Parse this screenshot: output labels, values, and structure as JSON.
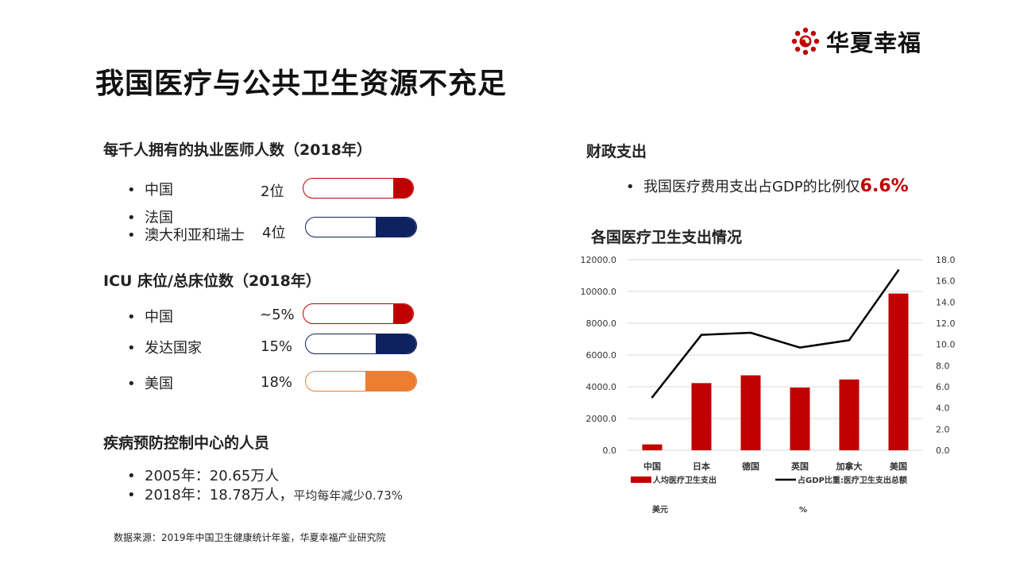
{
  "title": "我国医疗与公共卫生资源不充足",
  "logo": {
    "text": "华夏幸福",
    "icon": "flower-logo-icon",
    "color": "#c00000"
  },
  "colors": {
    "red": "#c00000",
    "navy": "#0e2260",
    "orange": "#ed7d31"
  },
  "doctors": {
    "heading": "每千人拥有的执业医师人数（2018年）",
    "rows": [
      {
        "labels": [
          "中国"
        ],
        "value": "2位",
        "fill": 0.18,
        "color": "#c00000"
      },
      {
        "labels": [
          "法国",
          "澳大利亚和瑞士"
        ],
        "value": "4位",
        "fill": 0.37,
        "color": "#0e2260"
      }
    ]
  },
  "icu": {
    "heading": "ICU 床位/总床位数（2018年）",
    "rows": [
      {
        "labels": [
          "中国"
        ],
        "value": "~5%",
        "fill": 0.18,
        "color": "#c00000"
      },
      {
        "labels": [
          "发达国家"
        ],
        "value": "15%",
        "fill": 0.37,
        "color": "#0e2260"
      },
      {
        "labels": [
          "美国"
        ],
        "value": "18%",
        "fill": 0.46,
        "color": "#ed7d31"
      }
    ]
  },
  "cdc": {
    "heading": "疾病预防控制中心的人员",
    "item1": "2005年：20.65万人",
    "item2_main": "2018年：18.78万人，",
    "item2_note": "平均每年减少0.73%"
  },
  "source": "数据来源：2019年中国卫生健康统计年鉴，华夏幸福产业研究院",
  "fiscal": {
    "heading": "财政支出",
    "bullet_text": "我国医疗费用支出占GDP的比例仅",
    "highlight": "6.6%"
  },
  "chart_data": {
    "type": "bar",
    "title": "各国医疗卫生支出情况",
    "categories": [
      "中国",
      "日本",
      "德国",
      "英国",
      "加拿大",
      "美国"
    ],
    "series": [
      {
        "name": "人均医疗卫生支出",
        "type": "bar",
        "axis": "left",
        "unit": "美元",
        "color": "#c00000",
        "values": [
          370,
          4230,
          4720,
          3950,
          4460,
          9870
        ]
      },
      {
        "name": "占GDP比重:医疗卫生支出总额",
        "type": "line",
        "axis": "right",
        "unit": "%",
        "color": "#000000",
        "values": [
          5.0,
          10.9,
          11.1,
          9.7,
          10.4,
          17.0
        ]
      }
    ],
    "y_left": {
      "min": 0,
      "max": 12000,
      "ticks": [
        "0.0",
        "2000.0",
        "4000.0",
        "6000.0",
        "8000.0",
        "10000.0",
        "12000.0"
      ]
    },
    "y_right": {
      "min": 0,
      "max": 18,
      "ticks": [
        "0.0",
        "2.0",
        "4.0",
        "6.0",
        "8.0",
        "10.0",
        "12.0",
        "14.0",
        "16.0",
        "18.0"
      ]
    },
    "legend_units": [
      "美元",
      "%"
    ],
    "grid": true,
    "legend_position": "bottom"
  }
}
